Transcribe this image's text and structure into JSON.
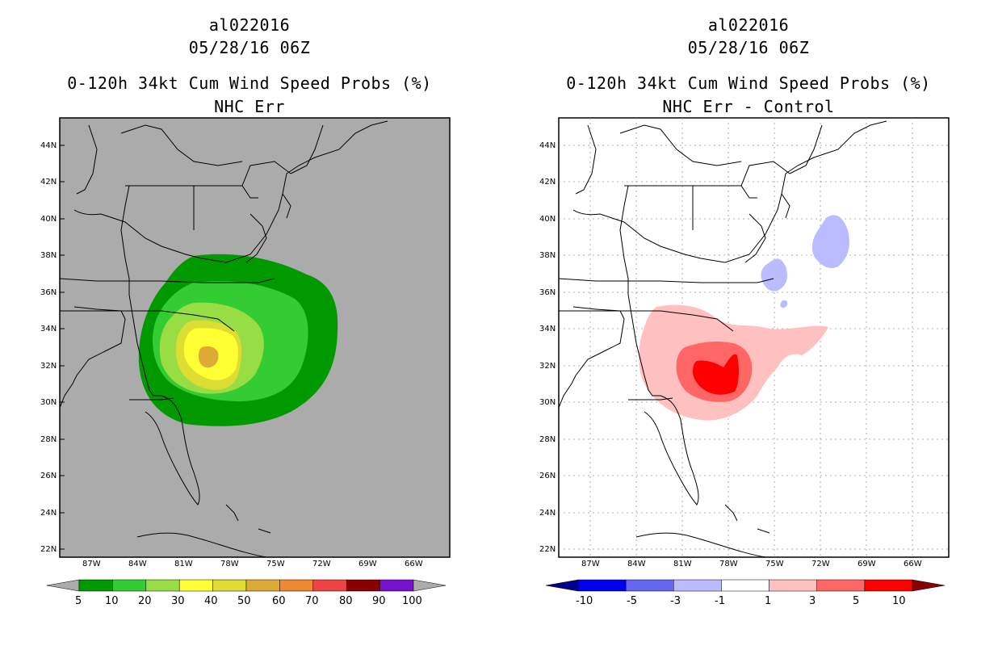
{
  "left_panel": {
    "storm_id": "al022016",
    "datetime": "05/28/16 06Z",
    "product": "0-120h 34kt Cum Wind Speed Probs (%)",
    "subtitle": "NHC Err",
    "colorbar": {
      "labels": [
        "5",
        "10",
        "20",
        "30",
        "40",
        "50",
        "60",
        "70",
        "80",
        "90",
        "100"
      ],
      "colors": [
        "#ababab",
        "#009900",
        "#33cc33",
        "#99dd44",
        "#ffff33",
        "#dddd33",
        "#ddaa33",
        "#ee8833",
        "#ee4444",
        "#880000",
        "#7711cc",
        "#ababab"
      ]
    }
  },
  "right_panel": {
    "storm_id": "al022016",
    "datetime": "05/28/16 06Z",
    "product": "0-120h 34kt Cum Wind Speed Probs (%)",
    "subtitle": "NHC Err - Control",
    "colorbar": {
      "labels": [
        "-10",
        "-5",
        "-3",
        "-1",
        "1",
        "3",
        "5",
        "10"
      ],
      "colors": [
        "#00008b",
        "#0000ee",
        "#6666ee",
        "#bbbbff",
        "#ffffff",
        "#ffc0c0",
        "#ff6666",
        "#ff0000",
        "#880000"
      ]
    }
  },
  "axes": {
    "lat_labels": [
      "44N",
      "42N",
      "40N",
      "38N",
      "36N",
      "34N",
      "32N",
      "30N",
      "28N",
      "26N",
      "24N",
      "22N"
    ],
    "lon_labels": [
      "87W",
      "84W",
      "81W",
      "78W",
      "75W",
      "72W",
      "69W",
      "66W"
    ]
  }
}
